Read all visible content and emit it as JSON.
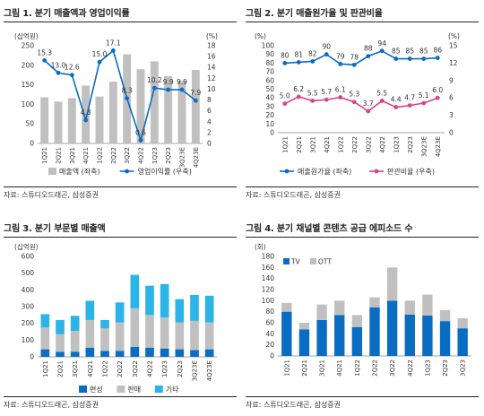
{
  "source": "자료: 스튜디오드래곤, 삼성증권",
  "chart_data": [
    {
      "type": "bar",
      "title": "그림 1. 분기 매출액과 영업이익률",
      "left_unit": "(십억원)",
      "right_unit": "(%)",
      "categories": [
        "1Q21",
        "2Q21",
        "3Q21",
        "4Q21",
        "1Q22",
        "2Q22",
        "3Q22",
        "4Q22",
        "1Q23",
        "2Q23",
        "3Q23E",
        "4Q23E"
      ],
      "ylim_left": [
        0,
        250
      ],
      "yticks_left": [
        "0",
        "50",
        "100",
        "150",
        "200",
        "250"
      ],
      "ylim_right": [
        0,
        18
      ],
      "yticks_right": [
        "0",
        "2",
        "4",
        "6",
        "8",
        "10",
        "12",
        "14",
        "16",
        "18"
      ],
      "series": [
        {
          "name": "매출액 (좌축)",
          "kind": "bar",
          "axis": "left",
          "color": "#c0c0c0",
          "values": [
            118,
            107,
            116,
            148,
            120,
            158,
            228,
            190,
            210,
            172,
            160,
            188
          ]
        },
        {
          "name": "영업이익률 (우축)",
          "kind": "line",
          "axis": "right",
          "color": "#0a6cc2",
          "values": [
            15.3,
            13.0,
            12.6,
            4.3,
            15.0,
            17.1,
            8.3,
            0.6,
            10.2,
            9.9,
            9.9,
            7.9
          ],
          "labels": [
            "15.3",
            "13.0",
            "12.6",
            "4.3",
            "15.0",
            "17.1",
            "8.3",
            "0.6",
            "10.2",
            "9.9",
            "9.9",
            "7.9"
          ]
        }
      ]
    },
    {
      "type": "line",
      "title": "그림 2. 분기 매출원가율 및 판관비율",
      "left_unit": "(%)",
      "right_unit": "(%)",
      "categories": [
        "1Q21",
        "2Q21",
        "3Q21",
        "4Q21",
        "1Q22",
        "2Q22",
        "3Q22",
        "4Q22",
        "1Q23",
        "2Q23",
        "3Q23E",
        "4Q23E"
      ],
      "ylim_left": [
        0,
        100
      ],
      "yticks_left": [
        "0",
        "10",
        "20",
        "30",
        "40",
        "50",
        "60",
        "70",
        "80",
        "90",
        "100"
      ],
      "ylim_right": [
        0,
        15
      ],
      "yticks_right": [
        "0",
        "3",
        "6",
        "9",
        "12",
        "15"
      ],
      "series": [
        {
          "name": "매출원가율 (좌축)",
          "axis": "left",
          "color": "#0a6cc2",
          "values": [
            80,
            81,
            82,
            90,
            79,
            78,
            88,
            94,
            85,
            85,
            85,
            86
          ],
          "labels": [
            "80",
            "81",
            "82",
            "90",
            "79",
            "78",
            "88",
            "94",
            "85",
            "85",
            "85",
            "86"
          ]
        },
        {
          "name": "판관비율 (우축)",
          "axis": "right",
          "color": "#d9438a",
          "values": [
            5.0,
            6.2,
            5.5,
            5.7,
            6.1,
            5.3,
            3.7,
            5.5,
            4.4,
            4.7,
            5.1,
            6.0
          ],
          "labels": [
            "5.0",
            "6.2",
            "5.5",
            "5.7",
            "6.1",
            "5.3",
            "3.7",
            "5.5",
            "4.4",
            "4.7",
            "5.1",
            "6.0"
          ]
        }
      ]
    },
    {
      "type": "stacked_bar",
      "title": "그림 3. 분기 부문별 매출액",
      "left_unit": "(십억원)",
      "categories": [
        "1Q21",
        "2Q21",
        "3Q21",
        "4Q21",
        "1Q22",
        "2Q22",
        "3Q22",
        "4Q22",
        "1Q23",
        "2Q23",
        "3Q23E",
        "4Q23E"
      ],
      "ylim_left": [
        0,
        600
      ],
      "yticks_left": [
        "0",
        "100",
        "200",
        "300",
        "400",
        "500",
        "600"
      ],
      "series": [
        {
          "name": "편성",
          "color": "#0a6cc2",
          "values": [
            45,
            30,
            30,
            55,
            35,
            35,
            60,
            55,
            50,
            45,
            40,
            45
          ]
        },
        {
          "name": "판매",
          "color": "#c0c0c0",
          "values": [
            130,
            105,
            125,
            165,
            135,
            170,
            230,
            195,
            185,
            160,
            175,
            160
          ]
        },
        {
          "name": "기타",
          "color": "#2bb4e8",
          "values": [
            80,
            85,
            90,
            115,
            50,
            120,
            200,
            175,
            200,
            140,
            155,
            160
          ]
        }
      ]
    },
    {
      "type": "stacked_bar",
      "title": "그림 4. 분기 채널별 콘텐츠 공급 에피소드 수",
      "left_unit": "(회)",
      "categories": [
        "1Q21",
        "2Q21",
        "3Q21",
        "4Q21",
        "1Q22",
        "2Q22",
        "3Q22",
        "4Q22",
        "1Q23",
        "2Q23",
        "3Q23"
      ],
      "ylim_left": [
        0,
        180
      ],
      "yticks_left": [
        "0",
        "20",
        "40",
        "60",
        "80",
        "100",
        "120",
        "140",
        "160",
        "180"
      ],
      "legend": "top-left",
      "series": [
        {
          "name": "TV",
          "color": "#0a6cc2",
          "values": [
            80,
            48,
            65,
            74,
            52,
            88,
            100,
            75,
            73,
            63,
            50
          ]
        },
        {
          "name": "OTT",
          "color": "#c0c0c0",
          "values": [
            16,
            12,
            28,
            26,
            22,
            18,
            60,
            25,
            38,
            20,
            18
          ]
        }
      ]
    }
  ]
}
